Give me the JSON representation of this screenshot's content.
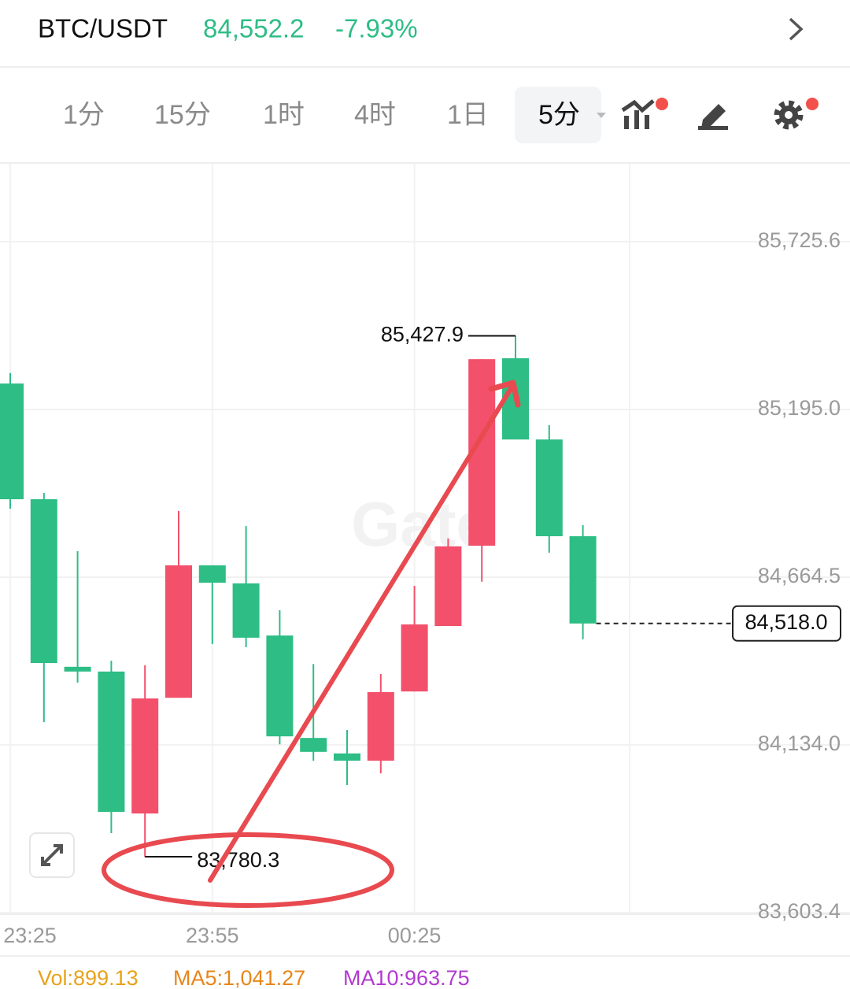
{
  "header": {
    "symbol": "BTC/USDT",
    "price": "84,552.2",
    "change": "-7.93%"
  },
  "timeframes": [
    "1分",
    "15分",
    "1时",
    "4时",
    "1日"
  ],
  "active_timeframe": "5分",
  "chart_data": {
    "type": "candlestick",
    "watermark": "Gate",
    "categories": [
      "23:25",
      null,
      null,
      null,
      null,
      null,
      "23:55",
      null,
      null,
      null,
      null,
      null,
      "00:25",
      null,
      null,
      null,
      null,
      null
    ],
    "open": [
      85277,
      84911,
      84381,
      84366,
      83917,
      84283,
      84702,
      84645,
      84480,
      84156,
      84107,
      84084,
      84303,
      84510,
      84764,
      85357,
      85100,
      84794
    ],
    "high": [
      85310,
      84931,
      84747,
      84400,
      84386,
      84874,
      84702,
      84826,
      84560,
      84390,
      84181,
      84358,
      84637,
      84787,
      85354,
      85427.9,
      85145,
      84829
    ],
    "low": [
      84881,
      84206,
      84331,
      83855,
      83780.3,
      84283,
      84453,
      84443,
      84136,
      84084,
      84007,
      84044,
      84303,
      84510,
      84650,
      85100,
      84742,
      84468
    ],
    "close": [
      84911,
      84393,
      84366,
      83922,
      84281,
      84702,
      84647,
      84473,
      84161,
      84112,
      84084,
      84301,
      84515,
      84762,
      85354,
      85100,
      84794,
      84518.0
    ],
    "up_color": "#f2506b",
    "down_color": "#2ebd85",
    "ylim": [
      83601,
      85972
    ],
    "yticks": [
      {
        "value": 83603.4,
        "label": "83,603.4"
      },
      {
        "value": 84134.0,
        "label": "84,134.0"
      },
      {
        "value": 84664.5,
        "label": "84,664.5"
      },
      {
        "value": 85195.0,
        "label": "85,195.0"
      },
      {
        "value": 85725.6,
        "label": "85,725.6"
      }
    ],
    "grid": true,
    "high_marker": {
      "value": 85427.9,
      "label": "85,427.9"
    },
    "low_marker": {
      "value": 83780.3,
      "label": "83,780.3"
    },
    "last_price": {
      "value": 84518.0,
      "label": "84,518.0"
    },
    "indicators": [
      {
        "label": "Vol:899.13",
        "color": "#e8a21a"
      },
      {
        "label": "MA5:1,041.27",
        "color": "#e8861a"
      },
      {
        "label": "MA10:963.75",
        "color": "#b13ad0"
      }
    ]
  }
}
